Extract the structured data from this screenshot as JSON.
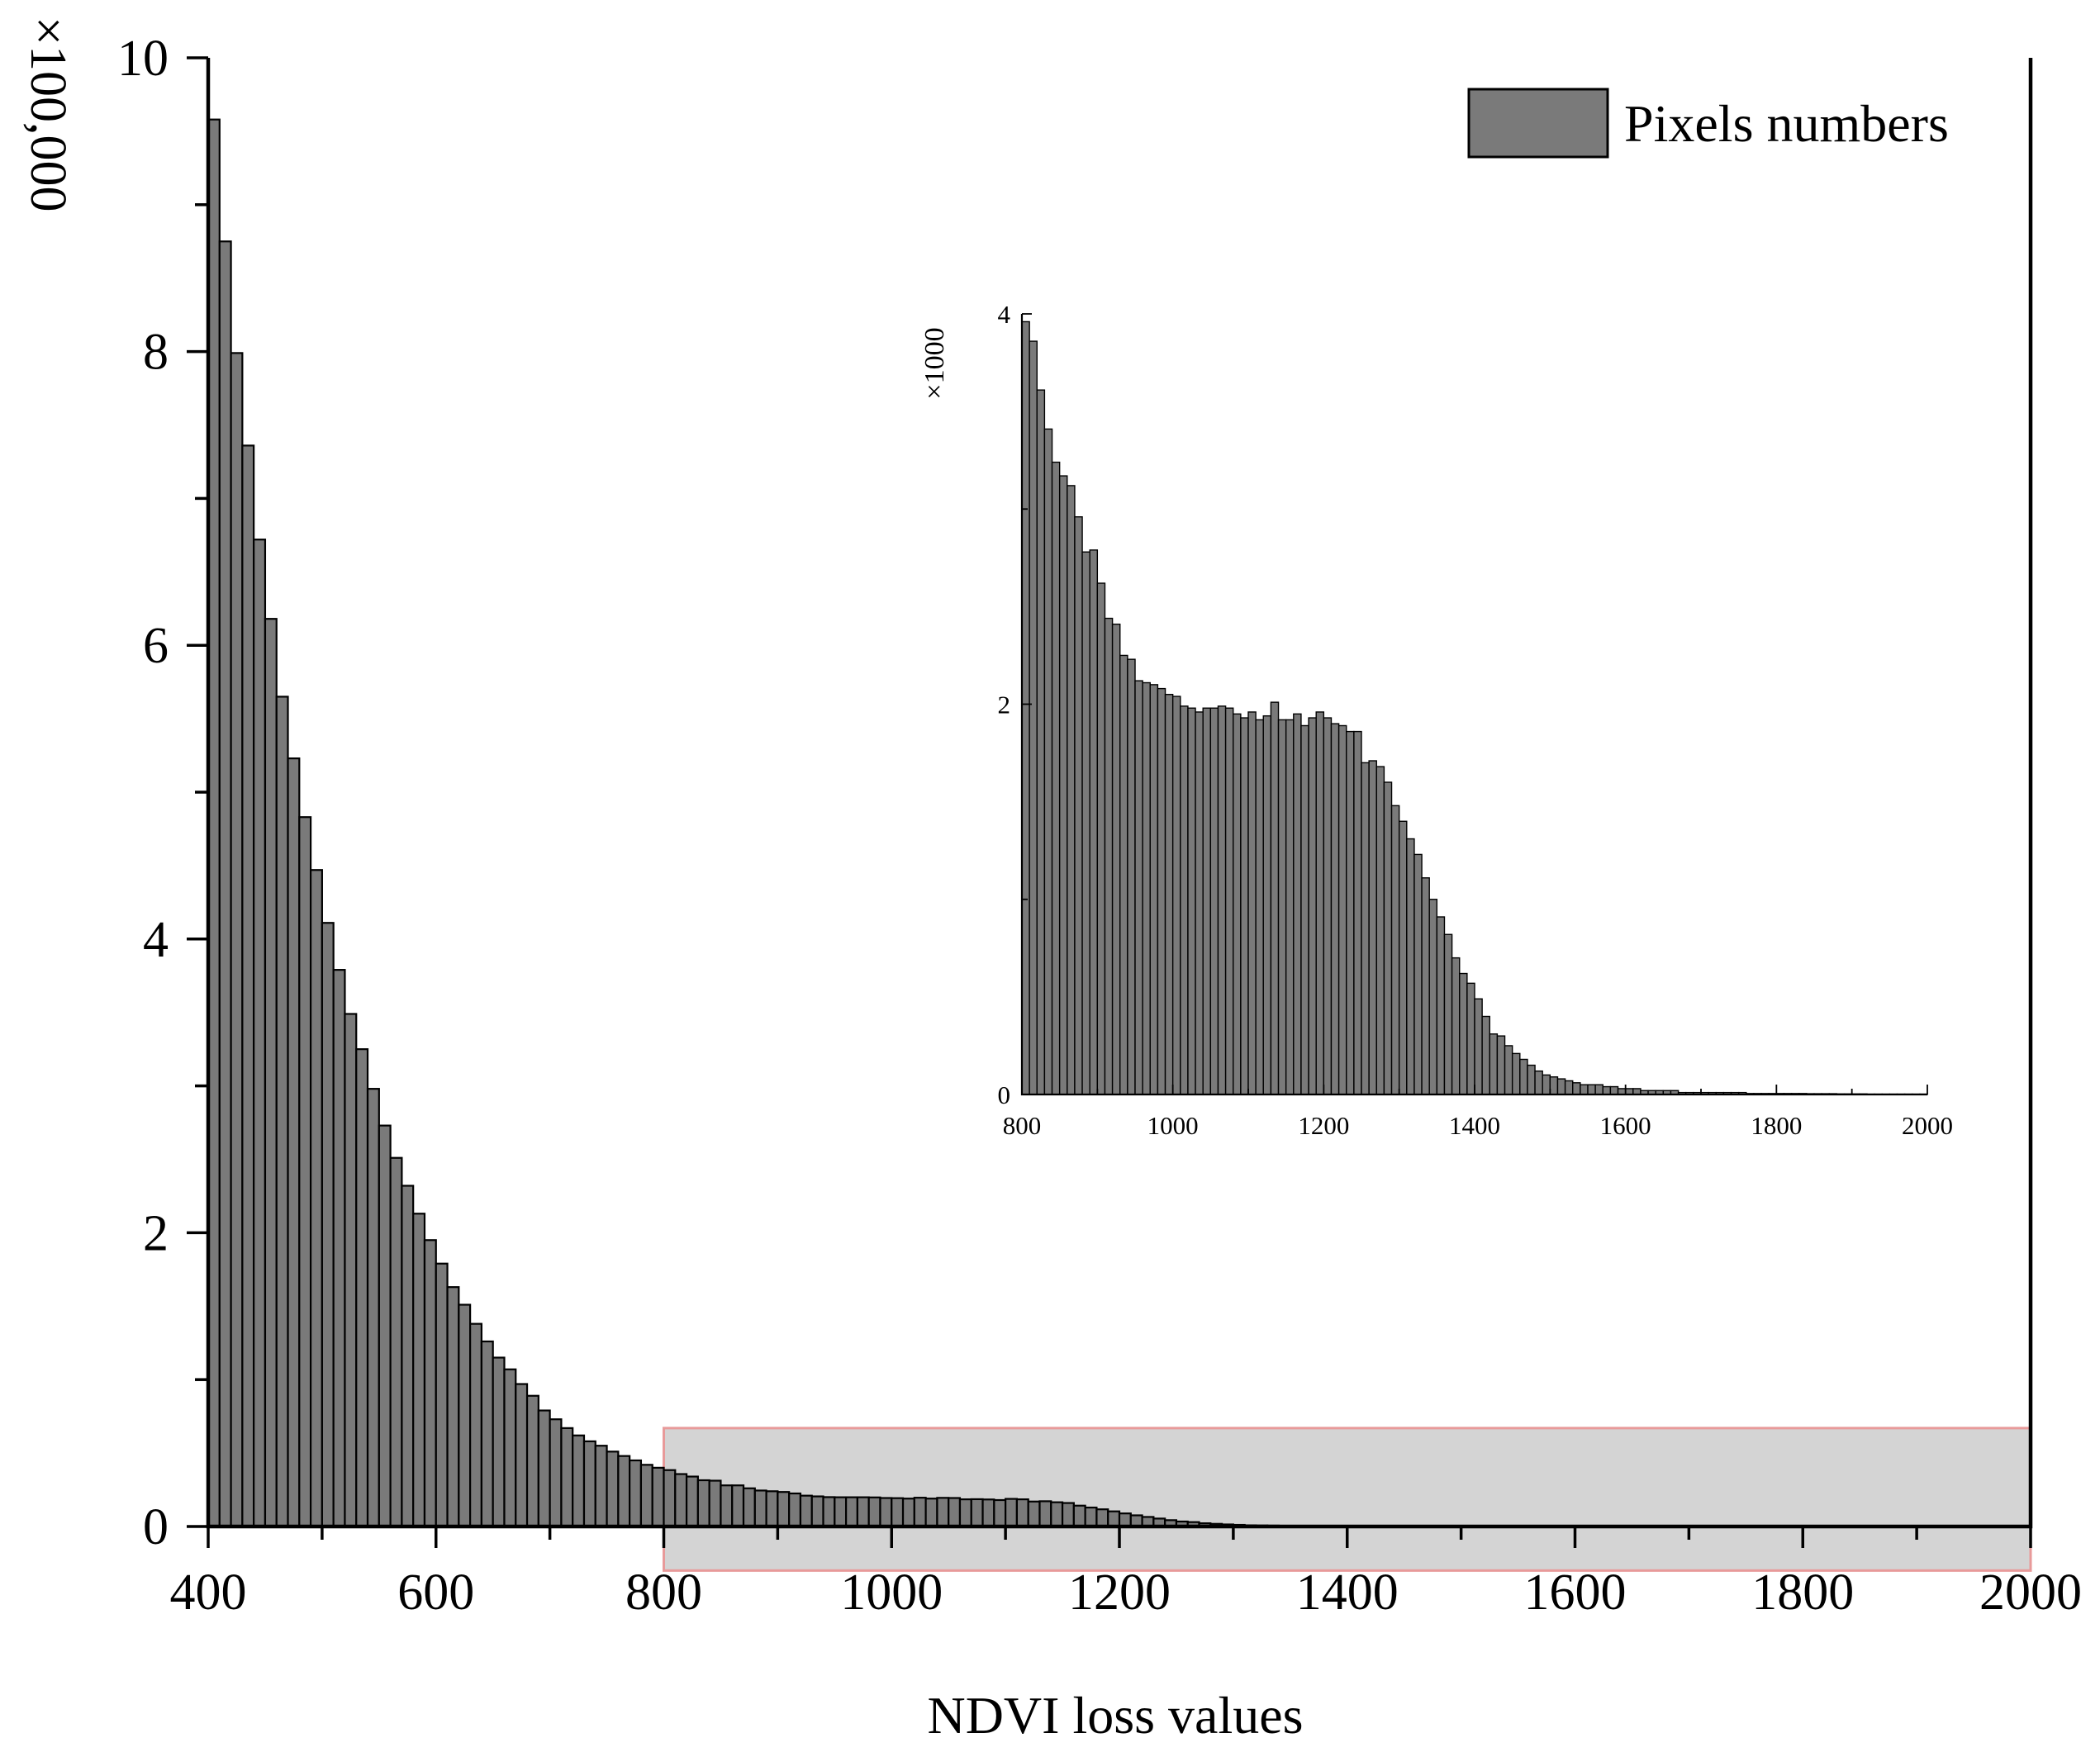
{
  "colors": {
    "bar_fill": "#7a7a7a",
    "bar_stroke": "#000000",
    "highlight_fill": "#d4d4d4",
    "highlight_stroke": "#e89a9a"
  },
  "chart_data": [
    {
      "type": "bar",
      "role": "main",
      "xlabel": "NDVI loss values",
      "ylabel_multiplier": "×100,000",
      "legend": {
        "label": "Pixels numbers",
        "position": "top-right"
      },
      "xlim": [
        400,
        2000
      ],
      "ylim": [
        0,
        10
      ],
      "x_ticks": [
        400,
        600,
        800,
        1000,
        1200,
        1400,
        1600,
        1800,
        2000
      ],
      "y_ticks": [
        0,
        2,
        4,
        6,
        8,
        10
      ],
      "bin_width": 10,
      "x_start": 400,
      "values": [
        9.58,
        8.75,
        7.99,
        7.36,
        6.72,
        6.18,
        5.65,
        5.23,
        4.83,
        4.47,
        4.11,
        3.79,
        3.49,
        3.25,
        2.98,
        2.73,
        2.51,
        2.32,
        2.13,
        1.95,
        1.79,
        1.63,
        1.51,
        1.38,
        1.26,
        1.15,
        1.07,
        0.97,
        0.89,
        0.79,
        0.73,
        0.67,
        0.62,
        0.58,
        0.55,
        0.51,
        0.48,
        0.45,
        0.42,
        0.4,
        0.384,
        0.357,
        0.34,
        0.315,
        0.312,
        0.28,
        0.28,
        0.26,
        0.245,
        0.24,
        0.235,
        0.225,
        0.21,
        0.205,
        0.2,
        0.199,
        0.199,
        0.199,
        0.198,
        0.194,
        0.193,
        0.19,
        0.196,
        0.19,
        0.195,
        0.194,
        0.185,
        0.186,
        0.184,
        0.18,
        0.188,
        0.185,
        0.17,
        0.172,
        0.165,
        0.16,
        0.142,
        0.129,
        0.117,
        0.103,
        0.089,
        0.076,
        0.065,
        0.054,
        0.043,
        0.034,
        0.03,
        0.022,
        0.018,
        0.014,
        0.011,
        0.008,
        0.007,
        0.006,
        0.005,
        0.004,
        0.004,
        0.003,
        0.003,
        0.002,
        0.002,
        0.002,
        0.001,
        0.001,
        0.001,
        0.001,
        0.001,
        0.001,
        0.001,
        0.0008,
        0.0006,
        0.0005,
        0.0004,
        0.0003,
        0.0002,
        0.0002,
        0.0001,
        0.0001,
        0.0001,
        0.0001,
        0.0001,
        0.0001,
        0.0001,
        0.0001,
        0.0001,
        0.0001,
        0.0001,
        0.0001,
        0.0001,
        0.0001,
        0.0001,
        0.0001,
        0.0001,
        0.0001,
        0.0001,
        0.0001,
        0.0001,
        0.0001,
        0.0001,
        0.0001,
        0.0001,
        0.0001,
        0.0001,
        0.0001,
        0.0001,
        0.0001,
        0.0001,
        0.0001,
        0.0001,
        0.0001,
        0.0001,
        0.0001,
        0.0001,
        0.0001,
        0.0001,
        0.0001,
        0.0001,
        0.0001,
        0.0001,
        0.0001
      ],
      "highlight_range": {
        "x": [
          800,
          2000
        ],
        "y": [
          -0.3,
          0.67
        ]
      }
    },
    {
      "type": "bar",
      "role": "inset",
      "ylabel_multiplier": "×1000",
      "xlim": [
        800,
        2000
      ],
      "ylim": [
        0,
        4
      ],
      "x_ticks": [
        800,
        1000,
        1200,
        1400,
        1600,
        1800,
        2000
      ],
      "y_ticks": [
        0,
        2,
        4
      ],
      "bin_width": 10,
      "x_start": 800,
      "values": [
        3.96,
        3.86,
        3.61,
        3.41,
        3.24,
        3.17,
        3.12,
        2.96,
        2.78,
        2.79,
        2.62,
        2.44,
        2.41,
        2.25,
        2.23,
        2.12,
        2.11,
        2.1,
        2.08,
        2.05,
        2.04,
        1.99,
        1.98,
        1.96,
        1.98,
        1.98,
        1.99,
        1.98,
        1.95,
        1.93,
        1.96,
        1.92,
        1.94,
        2.01,
        1.92,
        1.92,
        1.95,
        1.89,
        1.93,
        1.96,
        1.93,
        1.9,
        1.89,
        1.86,
        1.86,
        1.7,
        1.71,
        1.68,
        1.6,
        1.48,
        1.4,
        1.31,
        1.23,
        1.11,
        1.0,
        0.91,
        0.82,
        0.7,
        0.62,
        0.57,
        0.49,
        0.4,
        0.31,
        0.3,
        0.25,
        0.21,
        0.18,
        0.15,
        0.12,
        0.1,
        0.09,
        0.08,
        0.07,
        0.06,
        0.05,
        0.05,
        0.05,
        0.04,
        0.04,
        0.03,
        0.03,
        0.03,
        0.02,
        0.02,
        0.02,
        0.02,
        0.02,
        0.01,
        0.01,
        0.01,
        0.01,
        0.01,
        0.01,
        0.01,
        0.01,
        0.01,
        0.005,
        0.005,
        0.005,
        0.005,
        0.005,
        0.005,
        0.005,
        0.005,
        0.004,
        0.004,
        0.004,
        0.004,
        0.003,
        0.003,
        0.003,
        0.003,
        0.002,
        0.002,
        0.002,
        0.002,
        0.002,
        0.002,
        0.002,
        0.002
      ]
    }
  ]
}
